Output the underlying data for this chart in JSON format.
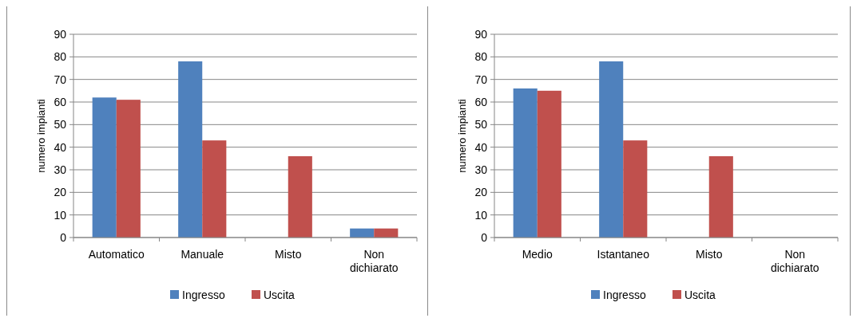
{
  "chart_data": [
    {
      "type": "bar",
      "categories": [
        "Automatico",
        "Manuale",
        "Misto",
        "Non dichiarato"
      ],
      "ylabel": "numero impianti",
      "ylim": [
        0,
        90
      ],
      "yticks": [
        0,
        10,
        20,
        30,
        40,
        50,
        60,
        70,
        80,
        90
      ],
      "grid": "y",
      "legend": "bottom",
      "series": [
        {
          "name": "Ingresso",
          "color": "#4f81bd",
          "values": [
            62,
            78,
            0,
            4
          ]
        },
        {
          "name": "Uscita",
          "color": "#c0504d",
          "values": [
            61,
            43,
            36,
            4
          ]
        }
      ]
    },
    {
      "type": "bar",
      "categories": [
        "Medio",
        "Istantaneo",
        "Misto",
        "Non dichiarato"
      ],
      "ylabel": "numero impianti",
      "ylim": [
        0,
        90
      ],
      "yticks": [
        0,
        10,
        20,
        30,
        40,
        50,
        60,
        70,
        80,
        90
      ],
      "grid": "y",
      "legend": "bottom",
      "series": [
        {
          "name": "Ingresso",
          "color": "#4f81bd",
          "values": [
            66,
            78,
            0,
            0
          ]
        },
        {
          "name": "Uscita",
          "color": "#c0504d",
          "values": [
            65,
            43,
            36,
            0
          ]
        }
      ]
    }
  ]
}
